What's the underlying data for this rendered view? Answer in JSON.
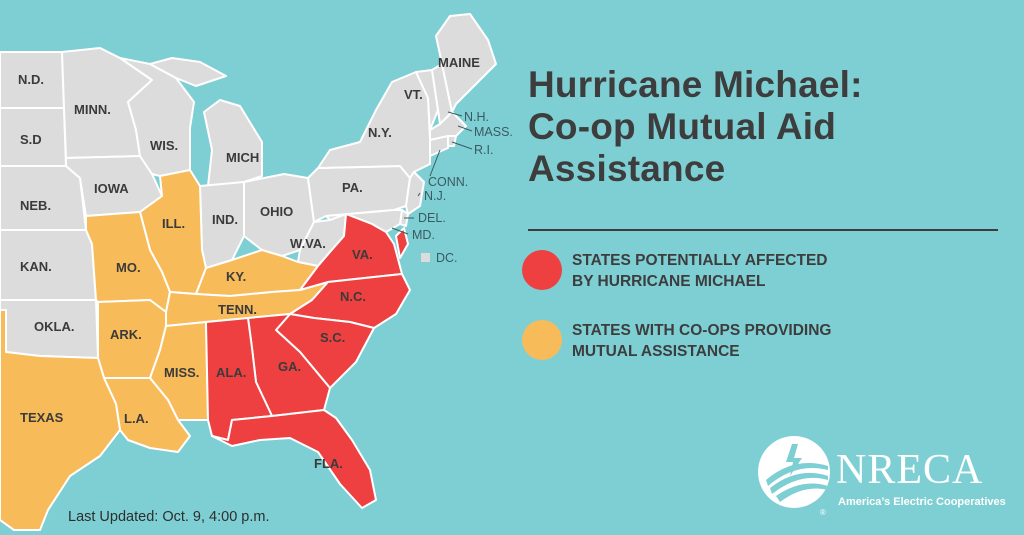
{
  "title": {
    "line1": "Hurricane Michael:",
    "line2": "Co-op Mutual Aid",
    "line3": "Assistance"
  },
  "colors": {
    "ocean": "#7ecfd4",
    "neutral_state": "#dcdcdc",
    "affected": "#ee4040",
    "assisting": "#f8bb5a",
    "border": "#ffffff",
    "text": "#3d3d3d"
  },
  "legend": [
    {
      "line1": "STATES POTENTIALLY AFFECTED",
      "line2": "BY HURRICANE MICHAEL",
      "color": "#ee4040"
    },
    {
      "line1": "STATES WITH CO-OPS PROVIDING",
      "line2": "MUTUAL ASSISTANCE",
      "color": "#f8bb5a"
    }
  ],
  "states": {
    "affected": [
      "VA.",
      "N.C.",
      "S.C.",
      "GA.",
      "ALA.",
      "FLA."
    ],
    "assisting": [
      "ILL.",
      "MO.",
      "KY.",
      "TENN.",
      "ARK.",
      "MISS.",
      "TEXAS",
      "L.A."
    ],
    "neutral": [
      "N.D.",
      "S.D",
      "NEB.",
      "KAN.",
      "OKLA.",
      "MINN.",
      "IOWA",
      "WIS.",
      "MICH",
      "IND.",
      "OHIO",
      "W.VA.",
      "PA.",
      "N.Y.",
      "VT.",
      "MAINE"
    ]
  },
  "labels": {
    "nd": "N.D.",
    "sd": "S.D",
    "neb": "NEB.",
    "kan": "KAN.",
    "okla": "OKLA.",
    "texas": "TEXAS",
    "minn": "MINN.",
    "iowa": "IOWA",
    "mo": "MO.",
    "ark": "ARK.",
    "la": "L.A.",
    "wis": "WIS.",
    "ill": "ILL.",
    "mich": "MICH",
    "ind": "IND.",
    "ohio": "OHIO",
    "ky": "KY.",
    "tenn": "TENN.",
    "miss": "MISS.",
    "ala": "ALA.",
    "ga": "GA.",
    "fla": "FLA.",
    "sc": "S.C.",
    "nc": "N.C.",
    "va": "VA.",
    "wva": "W.VA.",
    "pa": "PA.",
    "ny": "N.Y.",
    "vt": "VT.",
    "maine": "MAINE",
    "nh": "N.H.",
    "mass": "MASS.",
    "ri": "R.I.",
    "conn": "CONN.",
    "nj": "N.J.",
    "del": "DEL.",
    "md": "MD.",
    "dc": "DC."
  },
  "last_updated": "Last Updated: Oct. 9, 4:00 p.m.",
  "logo": {
    "name": "NRECA",
    "tagline": "America’s Electric Cooperatives",
    "reg": "®"
  }
}
